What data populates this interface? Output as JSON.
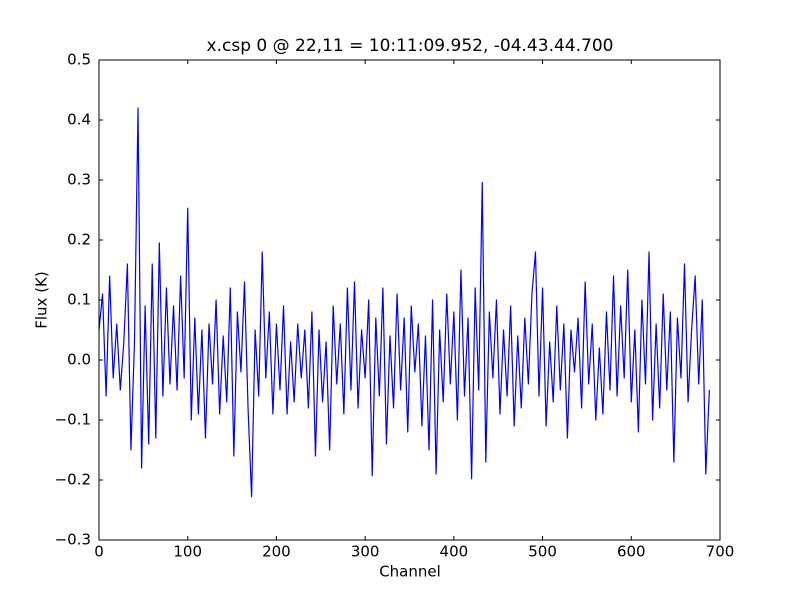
{
  "chart_data": {
    "type": "line",
    "title": "x.csp 0 @ 22,11 = 10:11:09.952, -04.43.44.700",
    "x_label": "Channel",
    "y_label": "Flux (K)",
    "color": "#0000ff",
    "xlim": [
      0,
      700
    ],
    "xticks": [
      0,
      100,
      200,
      300,
      400,
      500,
      600,
      700
    ],
    "ylim": [
      -0.3,
      0.5
    ],
    "yticks": [
      {
        "value": -0.3,
        "label": "−0.3"
      },
      {
        "value": -0.2,
        "label": "−0.2"
      },
      {
        "value": -0.1,
        "label": "−0.1"
      },
      {
        "value": 0,
        "label": "0.0"
      },
      0.1,
      0.2,
      0.3,
      0.4,
      0.5
    ],
    "grid": false,
    "x": [
      0,
      4,
      8,
      12,
      16,
      20,
      24,
      28,
      32,
      36,
      40,
      44,
      48,
      52,
      56,
      60,
      64,
      68,
      72,
      76,
      80,
      84,
      88,
      92,
      96,
      100,
      104,
      108,
      112,
      116,
      120,
      124,
      128,
      132,
      136,
      140,
      144,
      148,
      152,
      156,
      160,
      164,
      168,
      172,
      176,
      180,
      184,
      188,
      192,
      196,
      200,
      204,
      208,
      212,
      216,
      220,
      224,
      228,
      232,
      236,
      240,
      244,
      248,
      252,
      256,
      260,
      264,
      268,
      272,
      276,
      280,
      284,
      288,
      292,
      296,
      300,
      304,
      308,
      312,
      316,
      320,
      324,
      328,
      332,
      336,
      340,
      344,
      348,
      352,
      356,
      360,
      364,
      368,
      372,
      376,
      380,
      384,
      388,
      392,
      396,
      400,
      404,
      408,
      412,
      416,
      420,
      424,
      428,
      432,
      436,
      440,
      444,
      448,
      452,
      456,
      460,
      464,
      468,
      472,
      476,
      480,
      484,
      488,
      492,
      496,
      500,
      504,
      508,
      512,
      516,
      520,
      524,
      528,
      532,
      536,
      540,
      544,
      548,
      552,
      556,
      560,
      564,
      568,
      572,
      576,
      580,
      584,
      588,
      592,
      596,
      600,
      604,
      608,
      612,
      616,
      620,
      624,
      628,
      632,
      636,
      640,
      644,
      648,
      652,
      656,
      660,
      664,
      668,
      672,
      676,
      680,
      684,
      688
    ],
    "values": [
      0.05,
      0.11,
      -0.06,
      0.14,
      -0.03,
      0.06,
      -0.05,
      0.03,
      0.16,
      -0.15,
      0.03,
      0.42,
      -0.18,
      0.09,
      -0.14,
      0.16,
      -0.13,
      0.195,
      -0.06,
      0.12,
      -0.04,
      0.09,
      -0.05,
      0.14,
      -0.03,
      0.253,
      -0.1,
      0.07,
      -0.09,
      0.05,
      -0.13,
      0.06,
      -0.04,
      0.1,
      -0.09,
      0.04,
      -0.07,
      0.12,
      -0.16,
      0.08,
      -0.02,
      0.13,
      -0.08,
      -0.228,
      0.05,
      -0.06,
      0.18,
      -0.03,
      0.08,
      -0.09,
      0.06,
      -0.05,
      0.09,
      -0.09,
      0.03,
      -0.07,
      0.06,
      -0.03,
      0.05,
      -0.08,
      0.08,
      -0.16,
      0.05,
      -0.07,
      0.03,
      -0.15,
      0.09,
      -0.04,
      0.06,
      -0.09,
      0.12,
      -0.05,
      0.13,
      -0.08,
      0.05,
      -0.03,
      0.1,
      -0.193,
      0.07,
      -0.06,
      0.12,
      -0.14,
      0.04,
      -0.08,
      0.11,
      -0.05,
      0.07,
      -0.12,
      0.09,
      -0.02,
      0.06,
      -0.11,
      0.04,
      -0.15,
      0.1,
      -0.19,
      0.05,
      -0.07,
      0.11,
      -0.04,
      0.08,
      -0.1,
      0.15,
      -0.06,
      0.07,
      -0.198,
      0.12,
      -0.05,
      0.296,
      -0.17,
      0.08,
      -0.03,
      0.1,
      -0.09,
      0.05,
      -0.06,
      0.09,
      -0.11,
      0.04,
      -0.08,
      0.07,
      -0.04,
      0.11,
      0.18,
      -0.06,
      0.12,
      -0.11,
      0.03,
      -0.07,
      0.09,
      -0.05,
      0.06,
      -0.13,
      0.05,
      -0.02,
      0.07,
      -0.08,
      0.13,
      -0.04,
      0.06,
      -0.1,
      0.02,
      -0.09,
      0.08,
      -0.05,
      0.14,
      -0.06,
      0.09,
      -0.03,
      0.15,
      -0.07,
      0.05,
      -0.12,
      0.1,
      -0.04,
      0.18,
      -0.1,
      0.06,
      -0.08,
      0.11,
      -0.05,
      0.08,
      -0.17,
      0.07,
      -0.03,
      0.16,
      -0.07,
      0.05,
      0.14,
      -0.04,
      0.1,
      -0.19,
      -0.05
    ]
  }
}
